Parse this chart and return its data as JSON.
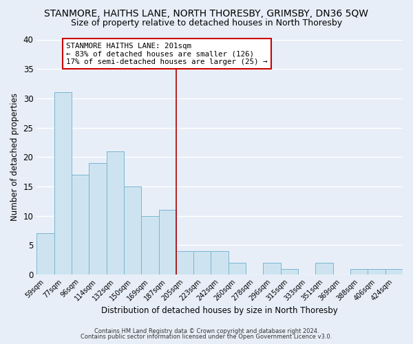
{
  "title": "STANMORE, HAITHS LANE, NORTH THORESBY, GRIMSBY, DN36 5QW",
  "subtitle": "Size of property relative to detached houses in North Thoresby",
  "xlabel": "Distribution of detached houses by size in North Thoresby",
  "ylabel": "Number of detached properties",
  "footnote1": "Contains HM Land Registry data © Crown copyright and database right 2024.",
  "footnote2": "Contains public sector information licensed under the Open Government Licence v3.0.",
  "bin_labels": [
    "59sqm",
    "77sqm",
    "96sqm",
    "114sqm",
    "132sqm",
    "150sqm",
    "169sqm",
    "187sqm",
    "205sqm",
    "223sqm",
    "242sqm",
    "260sqm",
    "278sqm",
    "296sqm",
    "315sqm",
    "333sqm",
    "351sqm",
    "369sqm",
    "388sqm",
    "406sqm",
    "424sqm"
  ],
  "bar_heights": [
    7,
    31,
    17,
    19,
    21,
    15,
    10,
    11,
    4,
    4,
    4,
    2,
    0,
    2,
    1,
    0,
    2,
    0,
    1,
    1,
    1
  ],
  "bar_color": "#cde4f0",
  "bar_edge_color": "#7ab5d0",
  "vline_color": "#aa0000",
  "annotation_title": "STANMORE HAITHS LANE: 201sqm",
  "annotation_line1": "← 83% of detached houses are smaller (126)",
  "annotation_line2": "17% of semi-detached houses are larger (25) →",
  "annotation_box_color": "#ffffff",
  "annotation_box_edge": "#cc0000",
  "ylim": [
    0,
    40
  ],
  "yticks": [
    0,
    5,
    10,
    15,
    20,
    25,
    30,
    35,
    40
  ],
  "background_color": "#e8eef8",
  "grid_color": "#ffffff",
  "title_fontsize": 10,
  "subtitle_fontsize": 9
}
